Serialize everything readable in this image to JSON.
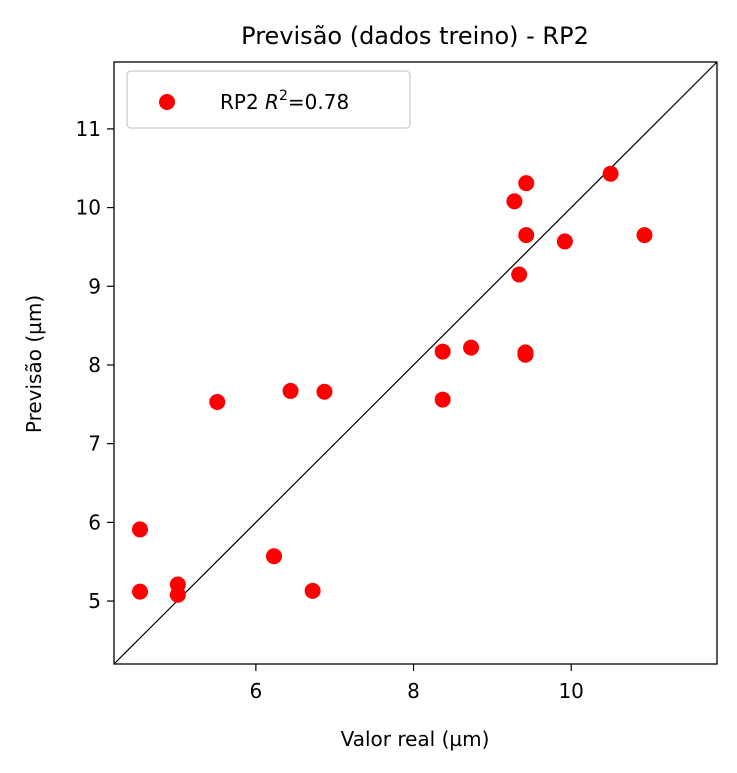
{
  "chart_data": {
    "type": "scatter",
    "title": "Previsão (dados treino) - RP2",
    "xlabel": "Valor real (µm)",
    "ylabel": "Previsão (µm)",
    "xlim": [
      4.2,
      11.85
    ],
    "ylim": [
      4.2,
      11.85
    ],
    "xticks": [
      "6",
      "8",
      "10"
    ],
    "yticks": [
      "5",
      "6",
      "7",
      "8",
      "9",
      "10",
      "11"
    ],
    "legend": {
      "position": "top-left",
      "series_prefix": "RP2 ",
      "r2_symbol": "R",
      "r2_exponent": "2",
      "r2_value": "=0.78"
    },
    "reference_line": "y = x",
    "point_color": "#ff0000",
    "series": [
      {
        "name": "RP2 R²=0.78",
        "points": [
          {
            "x": 4.53,
            "y": 5.91
          },
          {
            "x": 4.53,
            "y": 5.12
          },
          {
            "x": 5.01,
            "y": 5.21
          },
          {
            "x": 5.01,
            "y": 5.08
          },
          {
            "x": 5.51,
            "y": 7.53
          },
          {
            "x": 6.23,
            "y": 5.57
          },
          {
            "x": 6.44,
            "y": 7.67
          },
          {
            "x": 6.72,
            "y": 5.13
          },
          {
            "x": 6.87,
            "y": 7.66
          },
          {
            "x": 8.37,
            "y": 8.17
          },
          {
            "x": 8.37,
            "y": 7.56
          },
          {
            "x": 8.73,
            "y": 8.22
          },
          {
            "x": 9.28,
            "y": 10.08
          },
          {
            "x": 9.34,
            "y": 9.15
          },
          {
            "x": 9.42,
            "y": 8.16
          },
          {
            "x": 9.42,
            "y": 8.13
          },
          {
            "x": 9.43,
            "y": 9.65
          },
          {
            "x": 9.43,
            "y": 10.31
          },
          {
            "x": 9.92,
            "y": 9.57
          },
          {
            "x": 10.5,
            "y": 10.43
          },
          {
            "x": 10.93,
            "y": 9.65
          }
        ]
      }
    ]
  }
}
